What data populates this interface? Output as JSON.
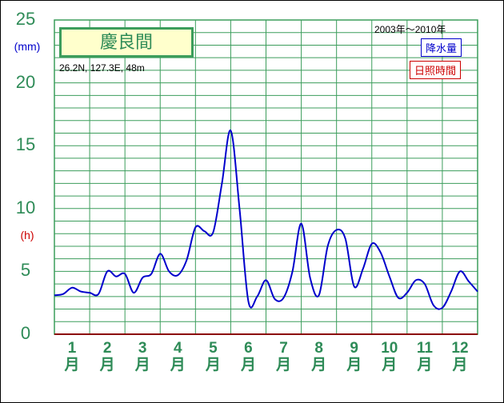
{
  "chart_data": {
    "type": "line",
    "title": "慶良間",
    "location": "26.2N,  127.3E,  48m",
    "period": "2003年～2010年",
    "legend": [
      {
        "label": "降水量",
        "color": "#0000cc"
      },
      {
        "label": "日照時間",
        "color": "#cc0000"
      }
    ],
    "y_units": [
      {
        "label": "(mm)",
        "color": "#0000cc"
      },
      {
        "label": "(h)",
        "color": "#cc0000"
      }
    ],
    "yticks": [
      "0",
      "5",
      "10",
      "15",
      "20",
      "25"
    ],
    "ylim": [
      0,
      25
    ],
    "xlim": [
      0.5,
      12.5
    ],
    "categories": [
      "1\n月",
      "2\n月",
      "3\n月",
      "4\n月",
      "5\n月",
      "6\n月",
      "7\n月",
      "8\n月",
      "9\n月",
      "10\n月",
      "11\n月",
      "12\n月"
    ],
    "grid": true,
    "series": [
      {
        "name": "降水量",
        "color": "#0000cc",
        "points": [
          [
            0.5,
            3.1
          ],
          [
            0.75,
            3.2
          ],
          [
            1.0,
            3.7
          ],
          [
            1.25,
            3.4
          ],
          [
            1.5,
            3.3
          ],
          [
            1.75,
            3.2
          ],
          [
            2.0,
            5.0
          ],
          [
            2.25,
            4.6
          ],
          [
            2.5,
            4.8
          ],
          [
            2.75,
            3.3
          ],
          [
            3.0,
            4.5
          ],
          [
            3.25,
            4.8
          ],
          [
            3.5,
            6.4
          ],
          [
            3.75,
            5.0
          ],
          [
            4.0,
            4.7
          ],
          [
            4.25,
            5.9
          ],
          [
            4.5,
            8.5
          ],
          [
            4.75,
            8.2
          ],
          [
            5.0,
            8.1
          ],
          [
            5.25,
            12.0
          ],
          [
            5.5,
            16.2
          ],
          [
            5.75,
            10.0
          ],
          [
            6.0,
            2.6
          ],
          [
            6.25,
            3.0
          ],
          [
            6.5,
            4.3
          ],
          [
            6.75,
            2.8
          ],
          [
            7.0,
            2.9
          ],
          [
            7.25,
            5.0
          ],
          [
            7.5,
            8.8
          ],
          [
            7.75,
            4.5
          ],
          [
            8.0,
            3.1
          ],
          [
            8.25,
            7.0
          ],
          [
            8.5,
            8.3
          ],
          [
            8.75,
            7.6
          ],
          [
            9.0,
            3.8
          ],
          [
            9.25,
            5.2
          ],
          [
            9.5,
            7.2
          ],
          [
            9.75,
            6.5
          ],
          [
            10.0,
            4.6
          ],
          [
            10.25,
            2.9
          ],
          [
            10.5,
            3.3
          ],
          [
            10.75,
            4.3
          ],
          [
            11.0,
            4.0
          ],
          [
            11.25,
            2.3
          ],
          [
            11.5,
            2.1
          ],
          [
            11.75,
            3.4
          ],
          [
            12.0,
            5.0
          ],
          [
            12.25,
            4.2
          ],
          [
            12.5,
            3.4
          ]
        ]
      }
    ]
  }
}
